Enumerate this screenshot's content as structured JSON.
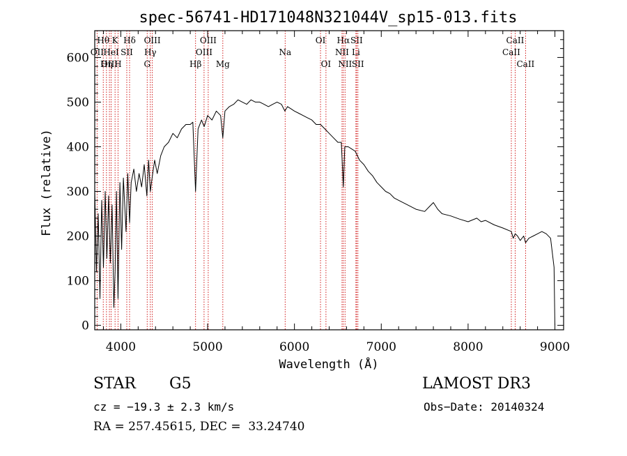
{
  "chart_data": {
    "type": "line",
    "title": "spec-56741-HD171048N321044V_sp15-013.fits",
    "xlabel": "Wavelength (Å)",
    "ylabel": "Flux (relative)",
    "xlim": [
      3700,
      9100
    ],
    "ylim": [
      -10,
      660
    ],
    "xticks": [
      4000,
      5000,
      6000,
      7000,
      8000,
      9000
    ],
    "xtick_labels": [
      "4000",
      "5000",
      "6000",
      "7000",
      "8000",
      "9000"
    ],
    "yticks": [
      0,
      100,
      200,
      300,
      400,
      500,
      600
    ],
    "ytick_labels": [
      "0",
      "100",
      "200",
      "300",
      "400",
      "500",
      "600"
    ],
    "grid": false,
    "series": [
      {
        "x": [
          3700,
          3720,
          3740,
          3760,
          3780,
          3800,
          3820,
          3840,
          3860,
          3880,
          3900,
          3920,
          3934,
          3950,
          3968,
          3990,
          4010,
          4030,
          4060,
          4080,
          4101,
          4120,
          4150,
          4180,
          4210,
          4240,
          4270,
          4300,
          4320,
          4340,
          4360,
          4390,
          4420,
          4460,
          4500,
          4550,
          4600,
          4650,
          4700,
          4750,
          4800,
          4830,
          4861,
          4890,
          4930,
          4960,
          5000,
          5050,
          5100,
          5150,
          5175,
          5200,
          5250,
          5300,
          5350,
          5400,
          5450,
          5500,
          5550,
          5600,
          5650,
          5700,
          5750,
          5800,
          5850,
          5890,
          5920,
          5960,
          6000,
          6050,
          6100,
          6150,
          6200,
          6250,
          6300,
          6350,
          6400,
          6450,
          6500,
          6540,
          6563,
          6580,
          6620,
          6660,
          6700,
          6750,
          6800,
          6850,
          6900,
          6950,
          7000,
          7050,
          7100,
          7150,
          7200,
          7300,
          7400,
          7500,
          7550,
          7600,
          7650,
          7700,
          7800,
          7900,
          8000,
          8100,
          8150,
          8200,
          8300,
          8400,
          8498,
          8520,
          8542,
          8570,
          8600,
          8640,
          8662,
          8700,
          8750,
          8800,
          8850,
          8900,
          8950,
          8990,
          9000
        ],
        "values": [
          300,
          120,
          250,
          60,
          280,
          130,
          300,
          150,
          290,
          140,
          270,
          40,
          120,
          300,
          60,
          320,
          170,
          330,
          210,
          340,
          230,
          320,
          350,
          300,
          340,
          310,
          360,
          290,
          370,
          300,
          330,
          370,
          340,
          380,
          400,
          410,
          430,
          420,
          440,
          450,
          450,
          455,
          300,
          440,
          460,
          445,
          470,
          460,
          480,
          470,
          420,
          480,
          490,
          495,
          505,
          500,
          495,
          505,
          500,
          500,
          495,
          490,
          495,
          500,
          495,
          480,
          490,
          485,
          480,
          475,
          470,
          465,
          460,
          450,
          450,
          440,
          430,
          420,
          410,
          410,
          310,
          400,
          400,
          395,
          390,
          370,
          360,
          345,
          335,
          320,
          310,
          300,
          295,
          285,
          280,
          270,
          260,
          255,
          265,
          275,
          260,
          250,
          245,
          238,
          232,
          240,
          232,
          235,
          225,
          218,
          210,
          195,
          205,
          200,
          190,
          200,
          185,
          195,
          200,
          205,
          210,
          205,
          195,
          130,
          0
        ]
      }
    ],
    "line_markers": [
      {
        "label": "Hθ",
        "x": 3798,
        "row": 0
      },
      {
        "label": "OII",
        "x": 3727,
        "row": 1
      },
      {
        "label": "OIII",
        "x": 3869,
        "row": 2
      },
      {
        "label": "K",
        "x": 3934,
        "row": 0
      },
      {
        "label": "HeI",
        "x": 3889,
        "row": 1
      },
      {
        "label": "Hη",
        "x": 3835,
        "row": 2
      },
      {
        "label": "H",
        "x": 3968,
        "row": 2
      },
      {
        "label": "SII",
        "x": 4069,
        "row": 1
      },
      {
        "label": "Hδ",
        "x": 4101,
        "row": 0
      },
      {
        "label": "OIII",
        "x": 4363,
        "row": 0
      },
      {
        "label": "Hγ",
        "x": 4340,
        "row": 1
      },
      {
        "label": "G",
        "x": 4304,
        "row": 2
      },
      {
        "label": "Hβ",
        "x": 4861,
        "row": 2
      },
      {
        "label": "OIII",
        "x": 5007,
        "row": 0
      },
      {
        "label": "OIII",
        "x": 4959,
        "row": 1
      },
      {
        "label": "Mg",
        "x": 5175,
        "row": 2
      },
      {
        "label": "Na",
        "x": 5893,
        "row": 1
      },
      {
        "label": "OI",
        "x": 6300,
        "row": 0
      },
      {
        "label": "OI",
        "x": 6363,
        "row": 2
      },
      {
        "label": "Hα",
        "x": 6563,
        "row": 0
      },
      {
        "label": "NII",
        "x": 6548,
        "row": 1
      },
      {
        "label": "NII",
        "x": 6583,
        "row": 2
      },
      {
        "label": "SII",
        "x": 6716,
        "row": 0
      },
      {
        "label": "Li",
        "x": 6708,
        "row": 1
      },
      {
        "label": "SII",
        "x": 6731,
        "row": 2
      },
      {
        "label": "CaII",
        "x": 8542,
        "row": 0
      },
      {
        "label": "CaII",
        "x": 8498,
        "row": 1
      },
      {
        "label": "CaII",
        "x": 8662,
        "row": 2
      }
    ]
  },
  "info": {
    "object_class": "STAR",
    "subclass": "G5",
    "survey": "LAMOST DR3",
    "cz": "cz = −19.3 ± 2.3 km/s",
    "obs_date": "Obs−Date: 20140324",
    "coords": "RA = 257.45615, DEC =  33.24740"
  },
  "colors": {
    "spectrum": "#000000",
    "marker_line": "#cc0000",
    "text": "#000000"
  }
}
